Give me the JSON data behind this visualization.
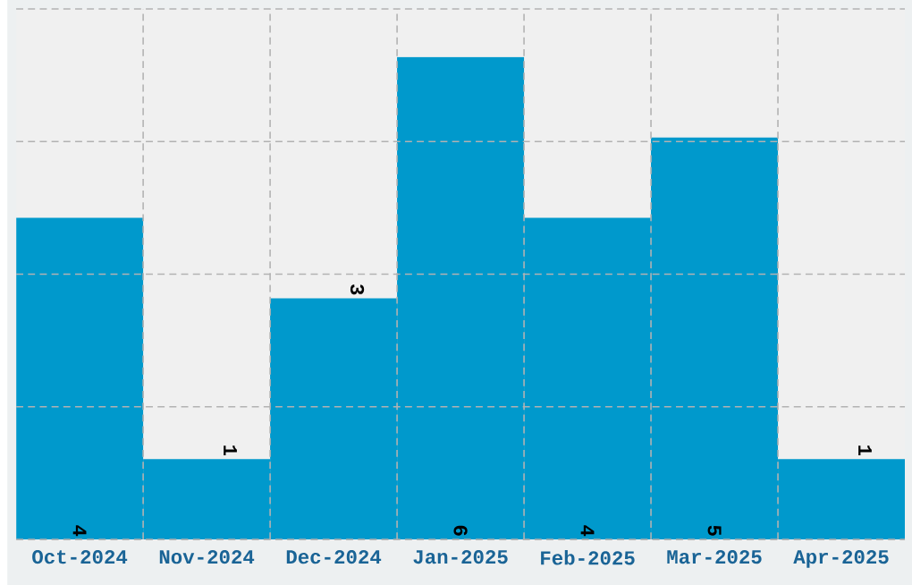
{
  "chart_data": {
    "type": "bar",
    "categories": [
      "Oct-2024",
      "Nov-2024",
      "Dec-2024",
      "Jan-2025",
      "Feb-2025",
      "Mar-2025",
      "Apr-2025"
    ],
    "values": [
      4,
      1,
      3,
      6,
      4,
      5,
      1
    ],
    "color": "#0099cc",
    "ylim": [
      0,
      6.6
    ],
    "yticks": [
      {
        "value": 0,
        "label": null
      },
      {
        "value": 1.65,
        "label": null
      },
      {
        "value": 3.3,
        "label": null
      },
      {
        "value": 4.95,
        "label": null
      },
      {
        "value": 6.6,
        "label": null
      }
    ],
    "tick_labels": "x",
    "grid": true,
    "data_labels": true
  }
}
